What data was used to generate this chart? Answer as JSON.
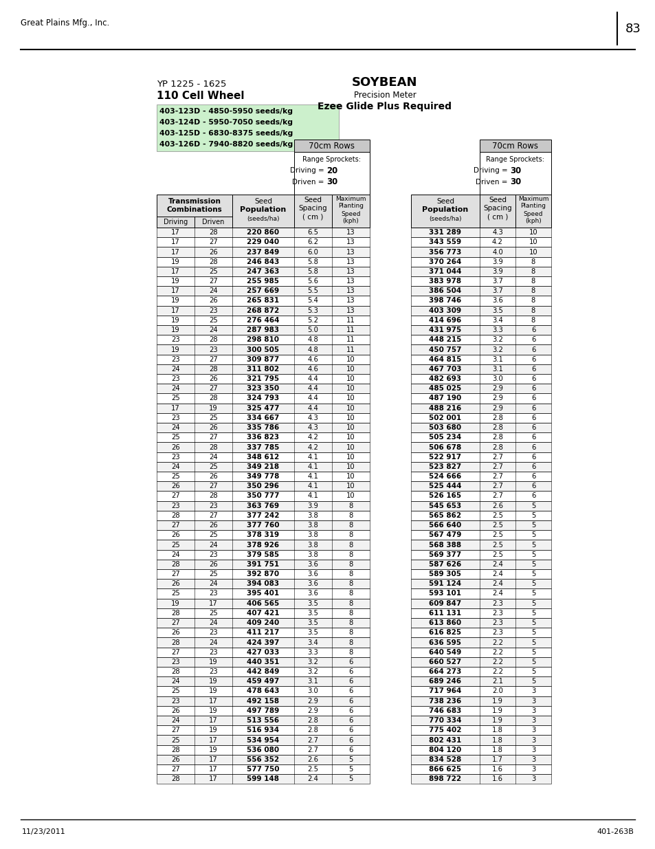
{
  "header_company": "Great Plains Mfg., Inc.",
  "page_number": "83",
  "title_left1": "YP 1225 - 1625",
  "title_left2": "110 Cell Wheel",
  "title_right1": "SOYBEAN",
  "title_right2": "Precision Meter",
  "title_right3": "Ezee Glide Plus Required",
  "green_box_lines": [
    "403-123D - 4850-5950 seeds/kg",
    "403-124D - 5950-7050 seeds/kg",
    "403-125D - 6830-8375 seeds/kg",
    "403-126D - 7940-8820 seeds/kg"
  ],
  "left_table_header": "70cm Rows",
  "left_range_sprockets": "Range Sprockets:",
  "left_driving_label": "Driving = ",
  "left_driving_val": "20",
  "left_driven_label": "Driven = ",
  "left_driven_val": "30",
  "right_table_header": "70cm Rows",
  "right_range_sprockets": "Range Sprockets:",
  "right_driving_label": "Driving = ",
  "right_driving_val": "30",
  "right_driven_label": "Driven = ",
  "right_driven_val": "30",
  "left_rows": [
    [
      17,
      28,
      "220 860",
      6.5,
      13
    ],
    [
      17,
      27,
      "229 040",
      6.2,
      13
    ],
    [
      17,
      26,
      "237 849",
      6.0,
      13
    ],
    [
      19,
      28,
      "246 843",
      5.8,
      13
    ],
    [
      17,
      25,
      "247 363",
      5.8,
      13
    ],
    [
      19,
      27,
      "255 985",
      5.6,
      13
    ],
    [
      17,
      24,
      "257 669",
      5.5,
      13
    ],
    [
      19,
      26,
      "265 831",
      5.4,
      13
    ],
    [
      17,
      23,
      "268 872",
      5.3,
      13
    ],
    [
      19,
      25,
      "276 464",
      5.2,
      11
    ],
    [
      19,
      24,
      "287 983",
      5.0,
      11
    ],
    [
      23,
      28,
      "298 810",
      4.8,
      11
    ],
    [
      19,
      23,
      "300 505",
      4.8,
      11
    ],
    [
      23,
      27,
      "309 877",
      4.6,
      10
    ],
    [
      24,
      28,
      "311 802",
      4.6,
      10
    ],
    [
      23,
      26,
      "321 795",
      4.4,
      10
    ],
    [
      24,
      27,
      "323 350",
      4.4,
      10
    ],
    [
      25,
      28,
      "324 793",
      4.4,
      10
    ],
    [
      17,
      19,
      "325 477",
      4.4,
      10
    ],
    [
      23,
      25,
      "334 667",
      4.3,
      10
    ],
    [
      24,
      26,
      "335 786",
      4.3,
      10
    ],
    [
      25,
      27,
      "336 823",
      4.2,
      10
    ],
    [
      26,
      28,
      "337 785",
      4.2,
      10
    ],
    [
      23,
      24,
      "348 612",
      4.1,
      10
    ],
    [
      24,
      25,
      "349 218",
      4.1,
      10
    ],
    [
      25,
      26,
      "349 778",
      4.1,
      10
    ],
    [
      26,
      27,
      "350 296",
      4.1,
      10
    ],
    [
      27,
      28,
      "350 777",
      4.1,
      10
    ],
    [
      23,
      23,
      "363 769",
      3.9,
      8
    ],
    [
      28,
      27,
      "377 242",
      3.8,
      8
    ],
    [
      27,
      26,
      "377 760",
      3.8,
      8
    ],
    [
      26,
      25,
      "378 319",
      3.8,
      8
    ],
    [
      25,
      24,
      "378 926",
      3.8,
      8
    ],
    [
      24,
      23,
      "379 585",
      3.8,
      8
    ],
    [
      28,
      26,
      "391 751",
      3.6,
      8
    ],
    [
      27,
      25,
      "392 870",
      3.6,
      8
    ],
    [
      26,
      24,
      "394 083",
      3.6,
      8
    ],
    [
      25,
      23,
      "395 401",
      3.6,
      8
    ],
    [
      19,
      17,
      "406 565",
      3.5,
      8
    ],
    [
      28,
      25,
      "407 421",
      3.5,
      8
    ],
    [
      27,
      24,
      "409 240",
      3.5,
      8
    ],
    [
      26,
      23,
      "411 217",
      3.5,
      8
    ],
    [
      28,
      24,
      "424 397",
      3.4,
      8
    ],
    [
      27,
      23,
      "427 033",
      3.3,
      8
    ],
    [
      23,
      19,
      "440 351",
      3.2,
      6
    ],
    [
      28,
      23,
      "442 849",
      3.2,
      6
    ],
    [
      24,
      19,
      "459 497",
      3.1,
      6
    ],
    [
      25,
      19,
      "478 643",
      3.0,
      6
    ],
    [
      23,
      17,
      "492 158",
      2.9,
      6
    ],
    [
      26,
      19,
      "497 789",
      2.9,
      6
    ],
    [
      24,
      17,
      "513 556",
      2.8,
      6
    ],
    [
      27,
      19,
      "516 934",
      2.8,
      6
    ],
    [
      25,
      17,
      "534 954",
      2.7,
      6
    ],
    [
      28,
      19,
      "536 080",
      2.7,
      6
    ],
    [
      26,
      17,
      "556 352",
      2.6,
      5
    ],
    [
      27,
      17,
      "577 750",
      2.5,
      5
    ],
    [
      28,
      17,
      "599 148",
      2.4,
      5
    ]
  ],
  "right_rows": [
    [
      "331 289",
      4.3,
      10
    ],
    [
      "343 559",
      4.2,
      10
    ],
    [
      "356 773",
      4.0,
      10
    ],
    [
      "370 264",
      3.9,
      8
    ],
    [
      "371 044",
      3.9,
      8
    ],
    [
      "383 978",
      3.7,
      8
    ],
    [
      "386 504",
      3.7,
      8
    ],
    [
      "398 746",
      3.6,
      8
    ],
    [
      "403 309",
      3.5,
      8
    ],
    [
      "414 696",
      3.4,
      8
    ],
    [
      "431 975",
      3.3,
      6
    ],
    [
      "448 215",
      3.2,
      6
    ],
    [
      "450 757",
      3.2,
      6
    ],
    [
      "464 815",
      3.1,
      6
    ],
    [
      "467 703",
      3.1,
      6
    ],
    [
      "482 693",
      3.0,
      6
    ],
    [
      "485 025",
      2.9,
      6
    ],
    [
      "487 190",
      2.9,
      6
    ],
    [
      "488 216",
      2.9,
      6
    ],
    [
      "502 001",
      2.8,
      6
    ],
    [
      "503 680",
      2.8,
      6
    ],
    [
      "505 234",
      2.8,
      6
    ],
    [
      "506 678",
      2.8,
      6
    ],
    [
      "522 917",
      2.7,
      6
    ],
    [
      "523 827",
      2.7,
      6
    ],
    [
      "524 666",
      2.7,
      6
    ],
    [
      "525 444",
      2.7,
      6
    ],
    [
      "526 165",
      2.7,
      6
    ],
    [
      "545 653",
      2.6,
      5
    ],
    [
      "565 862",
      2.5,
      5
    ],
    [
      "566 640",
      2.5,
      5
    ],
    [
      "567 479",
      2.5,
      5
    ],
    [
      "568 388",
      2.5,
      5
    ],
    [
      "569 377",
      2.5,
      5
    ],
    [
      "587 626",
      2.4,
      5
    ],
    [
      "589 305",
      2.4,
      5
    ],
    [
      "591 124",
      2.4,
      5
    ],
    [
      "593 101",
      2.4,
      5
    ],
    [
      "609 847",
      2.3,
      5
    ],
    [
      "611 131",
      2.3,
      5
    ],
    [
      "613 860",
      2.3,
      5
    ],
    [
      "616 825",
      2.3,
      5
    ],
    [
      "636 595",
      2.2,
      5
    ],
    [
      "640 549",
      2.2,
      5
    ],
    [
      "660 527",
      2.2,
      5
    ],
    [
      "664 273",
      2.2,
      5
    ],
    [
      "689 246",
      2.1,
      5
    ],
    [
      "717 964",
      2.0,
      3
    ],
    [
      "738 236",
      1.9,
      3
    ],
    [
      "746 683",
      1.9,
      3
    ],
    [
      "770 334",
      1.9,
      3
    ],
    [
      "775 402",
      1.8,
      3
    ],
    [
      "802 431",
      1.8,
      3
    ],
    [
      "804 120",
      1.8,
      3
    ],
    [
      "834 528",
      1.7,
      3
    ],
    [
      "866 625",
      1.6,
      3
    ],
    [
      "898 722",
      1.6,
      3
    ]
  ],
  "footer_left": "11/23/2011",
  "footer_right": "401-263B",
  "background_color": "#ffffff",
  "green_fill": "#ccf0cc",
  "gray_fill": "#c8c8c8",
  "light_gray_fill": "#e0e0e0"
}
